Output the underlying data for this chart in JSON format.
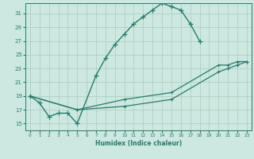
{
  "xlabel": "Humidex (Indice chaleur)",
  "bg_color": "#cce8e0",
  "grid_color": "#aaccbb",
  "line_color": "#2a7a6a",
  "xlim": [
    -0.5,
    23.5
  ],
  "ylim": [
    14.0,
    32.5
  ],
  "xticks": [
    0,
    1,
    2,
    3,
    4,
    5,
    6,
    7,
    8,
    9,
    10,
    11,
    12,
    13,
    14,
    15,
    16,
    17,
    18,
    19,
    20,
    21,
    22,
    23
  ],
  "yticks": [
    15,
    17,
    19,
    21,
    23,
    25,
    27,
    29,
    31
  ],
  "line1_x": [
    0,
    1,
    2,
    3,
    4,
    5,
    7,
    8,
    9,
    10,
    11,
    12,
    13,
    14,
    15,
    16,
    17,
    18
  ],
  "line1_y": [
    19,
    18,
    16,
    16.5,
    16.5,
    15,
    22,
    24.5,
    26.5,
    28,
    29.5,
    30.5,
    31.5,
    32.5,
    32,
    31.5,
    29.5,
    27
  ],
  "line2_x": [
    0,
    5,
    10,
    15,
    20,
    21,
    22,
    23
  ],
  "line2_y": [
    19,
    17,
    18.5,
    19.5,
    23.5,
    23.5,
    24,
    24
  ],
  "line3_x": [
    0,
    5,
    10,
    15,
    20,
    21,
    22,
    23
  ],
  "line3_y": [
    19,
    17,
    17.5,
    18.5,
    22.5,
    23,
    23.5,
    24
  ]
}
